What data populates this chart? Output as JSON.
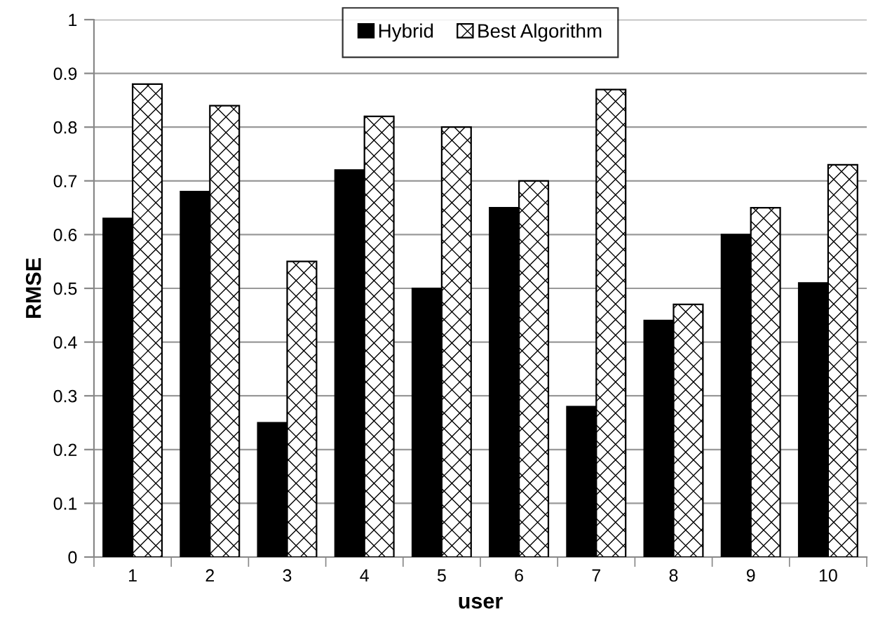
{
  "chart_data": {
    "type": "bar",
    "xlabel": "user",
    "ylabel": "RMSE",
    "categories": [
      "1",
      "2",
      "3",
      "4",
      "5",
      "6",
      "7",
      "8",
      "9",
      "10"
    ],
    "series": [
      {
        "name": "Hybrid",
        "color": "#000000",
        "values": [
          0.63,
          0.68,
          0.25,
          0.72,
          0.5,
          0.65,
          0.28,
          0.44,
          0.6,
          0.51
        ]
      },
      {
        "name": "Best Algorithm",
        "color": "#000000",
        "values": [
          0.88,
          0.84,
          0.55,
          0.82,
          0.8,
          0.7,
          0.87,
          0.47,
          0.65,
          0.73
        ]
      }
    ],
    "ylim": [
      0,
      1
    ],
    "yticks": [
      0,
      0.1,
      0.2,
      0.3,
      0.4,
      0.5,
      0.6,
      0.7,
      0.8,
      0.9,
      1
    ],
    "grid": "y",
    "legend": "top"
  }
}
